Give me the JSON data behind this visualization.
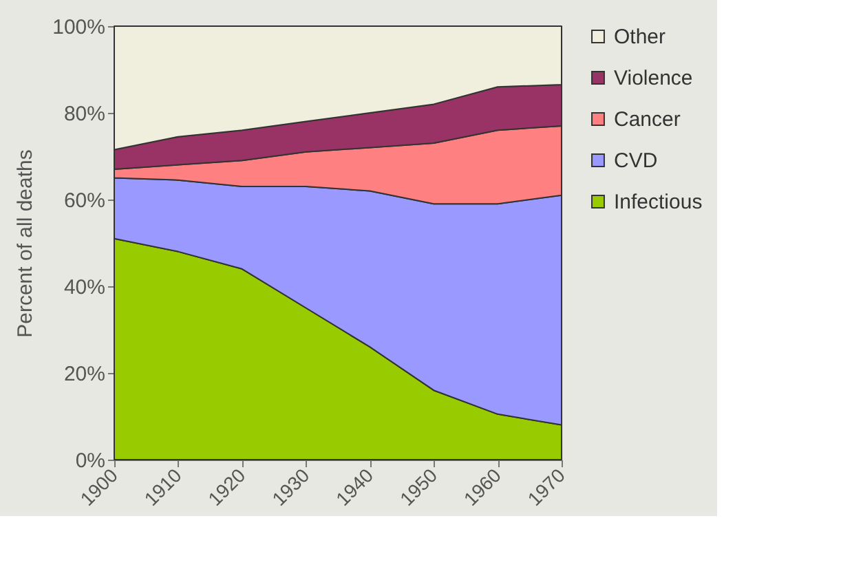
{
  "chart_data": {
    "type": "area",
    "stacked": true,
    "ylabel": "Percent of all deaths",
    "categories": [
      "1900",
      "1910",
      "1920",
      "1930",
      "1940",
      "1950",
      "1960",
      "1970"
    ],
    "series": [
      {
        "name": "Infectious",
        "color": "#99cc00",
        "values": [
          51,
          48,
          44,
          35,
          26,
          16,
          10.5,
          8
        ]
      },
      {
        "name": "CVD",
        "color": "#9999ff",
        "values": [
          14,
          16.5,
          19,
          28,
          36,
          43,
          48.5,
          53
        ]
      },
      {
        "name": "Cancer",
        "color": "#ff8080",
        "values": [
          2,
          3.5,
          6,
          8,
          10,
          14,
          17,
          16
        ]
      },
      {
        "name": "Violence",
        "color": "#993366",
        "values": [
          4.5,
          6.5,
          7,
          7,
          8,
          9,
          10,
          9.5
        ]
      },
      {
        "name": "Other",
        "color": "#f0eedc",
        "values": [
          28.5,
          25.5,
          24,
          22,
          20,
          18,
          14,
          13.5
        ]
      }
    ],
    "ylim": [
      0,
      100
    ],
    "yticks": [
      {
        "value": 0,
        "label": "0%"
      },
      {
        "value": 20,
        "label": "20%"
      },
      {
        "value": 40,
        "label": "40%"
      },
      {
        "value": 60,
        "label": "60%"
      },
      {
        "value": 80,
        "label": "80%"
      },
      {
        "value": 100,
        "label": "100%"
      }
    ],
    "legend": "right"
  }
}
